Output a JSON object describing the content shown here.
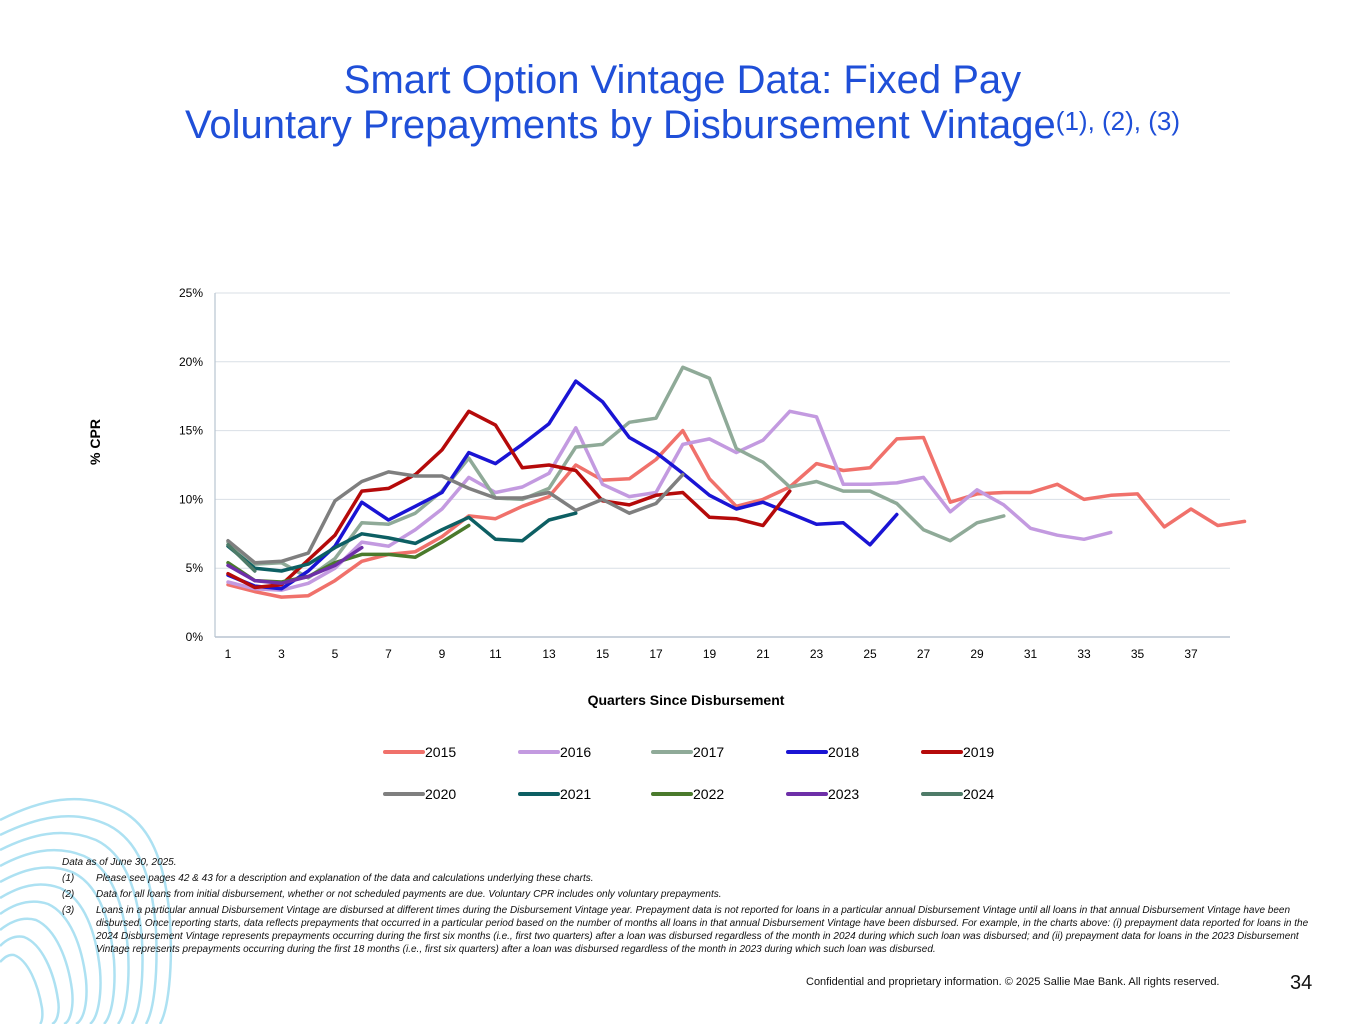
{
  "title": {
    "line1": "Smart Option Vintage Data: Fixed Pay",
    "line2": "Voluntary Prepayments by Disbursement Vintage",
    "superscript": "(1), (2), (3)"
  },
  "colors": {
    "title": "#1f4fd8",
    "grid": "#d9dfe6",
    "axis": "#b8c4d0"
  },
  "chart_data": {
    "type": "line",
    "title": "",
    "xlabel": "Quarters Since Disbursement",
    "ylabel": "% CPR",
    "xlim": [
      1,
      38
    ],
    "ylim": [
      0,
      25
    ],
    "x_ticks": [
      1,
      3,
      5,
      7,
      9,
      11,
      13,
      15,
      17,
      19,
      21,
      23,
      25,
      27,
      29,
      31,
      33,
      35,
      37
    ],
    "y_ticks": [
      0,
      5,
      10,
      15,
      20,
      25
    ],
    "y_tick_labels": [
      "0%",
      "5%",
      "10%",
      "15%",
      "20%",
      "25%"
    ],
    "grid": true,
    "legend_position": "bottom",
    "series": [
      {
        "name": "2015",
        "color": "#f0716b",
        "values": [
          3.8,
          3.3,
          2.9,
          3.0,
          4.1,
          5.5,
          6.0,
          6.2,
          7.3,
          8.8,
          8.6,
          9.5,
          10.2,
          12.5,
          11.4,
          11.5,
          12.9,
          15.0,
          11.5,
          9.5,
          10.0,
          10.9,
          12.6,
          12.1,
          12.3,
          14.4,
          14.5,
          9.8,
          10.4,
          10.5,
          10.5,
          11.1,
          10.0,
          10.3,
          10.4,
          8.0,
          9.3,
          8.1,
          8.4
        ]
      },
      {
        "name": "2016",
        "color": "#c39ae0",
        "values": [
          4.0,
          3.5,
          3.4,
          3.9,
          5.0,
          6.9,
          6.6,
          7.8,
          9.3,
          11.6,
          10.5,
          10.9,
          11.9,
          15.2,
          11.1,
          10.2,
          10.5,
          14.0,
          14.4,
          13.4,
          14.3,
          16.4,
          16.0,
          11.1,
          11.1,
          11.2,
          11.6,
          9.1,
          10.7,
          9.6,
          7.9,
          7.4,
          7.1,
          7.6
        ]
      },
      {
        "name": "2017",
        "color": "#8faa98",
        "values": [
          6.9,
          5.3,
          5.4,
          4.3,
          5.7,
          8.3,
          8.2,
          9.0,
          10.6,
          13.0,
          10.1,
          10.0,
          10.8,
          13.8,
          14.0,
          15.6,
          15.9,
          19.6,
          18.8,
          13.7,
          12.7,
          10.9,
          11.3,
          10.6,
          10.6,
          9.7,
          7.8,
          7.0,
          8.3,
          8.8
        ]
      },
      {
        "name": "2018",
        "color": "#1a14d4",
        "values": [
          4.5,
          3.7,
          3.5,
          4.8,
          6.6,
          9.8,
          8.5,
          9.5,
          10.5,
          13.4,
          12.6,
          14.0,
          15.5,
          18.6,
          17.1,
          14.5,
          13.4,
          11.9,
          10.3,
          9.3,
          9.8,
          9.0,
          8.2,
          8.3,
          6.7,
          8.9
        ]
      },
      {
        "name": "2019",
        "color": "#b50a0a",
        "values": [
          4.6,
          3.6,
          3.8,
          5.6,
          7.4,
          10.6,
          10.8,
          11.8,
          13.6,
          16.4,
          15.4,
          12.3,
          12.5,
          12.1,
          9.9,
          9.6,
          10.3,
          10.5,
          8.7,
          8.6,
          8.1,
          10.6
        ]
      },
      {
        "name": "2020",
        "color": "#7f7f7f",
        "values": [
          7.0,
          5.4,
          5.5,
          6.1,
          9.9,
          11.3,
          12.0,
          11.7,
          11.7,
          10.8,
          10.1,
          10.1,
          10.5,
          9.2,
          10.0,
          9.0,
          9.7,
          11.8
        ]
      },
      {
        "name": "2021",
        "color": "#0d5f63",
        "values": [
          6.6,
          5.0,
          4.8,
          5.3,
          6.5,
          7.5,
          7.2,
          6.8,
          7.8,
          8.7,
          7.1,
          7.0,
          8.5,
          9.0
        ]
      },
      {
        "name": "2022",
        "color": "#4a7a2c",
        "values": [
          5.4,
          4.1,
          4.0,
          4.4,
          5.4,
          6.0,
          6.0,
          5.8,
          6.9,
          8.1
        ]
      },
      {
        "name": "2023",
        "color": "#6e2fa8",
        "values": [
          5.2,
          4.1,
          3.9,
          4.4,
          5.2,
          6.5
        ]
      },
      {
        "name": "2024",
        "color": "#4e7b68",
        "values": [
          6.7,
          4.8
        ]
      }
    ]
  },
  "footnotes": {
    "as_of": "Data as of  June 30, 2025.",
    "items": [
      {
        "num": "(1)",
        "text": "Please see pages 42 & 43 for a description and explanation of the data and calculations underlying these charts."
      },
      {
        "num": "(2)",
        "text": "Data for all loans from initial disbursement, whether or not scheduled payments are due. Voluntary CPR includes only voluntary prepayments."
      },
      {
        "num": "(3)",
        "text": "Loans in a particular annual Disbursement Vintage are disbursed at different times during the Disbursement Vintage year.  Prepayment data is not reported for loans in a particular annual Disbursement Vintage until all loans in that annual Disbursement Vintage have been disbursed.  Once reporting starts, data reflects prepayments that occurred in a particular period based on the number of months all loans in that annual Disbursement Vintage have been disbursed.  For example, in the charts above:  (i) prepayment data reported for loans in the 2024 Disbursement Vintage represents prepayments occurring during the first six months (i.e., first two quarters) after a loan was disbursed regardless of the month in 2024 during which such loan was disbursed; and (ii) prepayment data for loans in the 2023 Disbursement Vintage represents prepayments occurring during the first 18 months (i.e., first six quarters) after a loan was disbursed regardless of the month in 2023 during which such loan was disbursed."
      }
    ]
  },
  "footer": {
    "confidential": "Confidential and proprietary information. © 2025 Sallie Mae Bank. All rights reserved.",
    "page_number": "34"
  }
}
